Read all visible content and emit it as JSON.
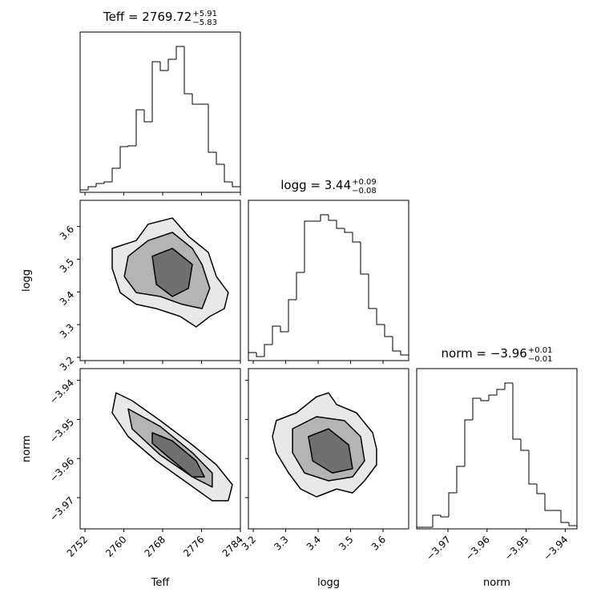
{
  "chart_data": [
    {
      "type": "histogram",
      "title": "Teff = 2769.72",
      "title_sup": "+5.91",
      "title_sub": "−5.83",
      "bins": [
        2751,
        2752.65,
        2754.3,
        2755.95,
        2757.6,
        2759.25,
        2760.9,
        2762.55,
        2764.2,
        2765.85,
        2767.5,
        2769.15,
        2770.8,
        2772.45,
        2774.1,
        2775.75,
        2777.4,
        2779.05,
        2780.7,
        2782.35,
        2784
      ],
      "values": [
        3,
        7,
        11,
        13,
        30,
        57,
        58,
        103,
        88,
        163,
        152,
        166,
        182,
        123,
        110,
        110,
        50,
        35,
        13,
        7
      ],
      "xlim": [
        2751,
        2784
      ],
      "xticks": [
        2752,
        2760,
        2768,
        2776,
        2784
      ],
      "ylim": [
        0,
        200
      ],
      "color": "#000000"
    },
    {
      "type": "contour",
      "ylabel": "logg",
      "xlim": [
        2751,
        2784
      ],
      "xticks": [
        2752,
        2760,
        2768,
        2776,
        2784
      ],
      "ylim": [
        3.19,
        3.68
      ],
      "yticks": [
        3.2,
        3.3,
        3.4,
        3.5,
        3.6
      ],
      "colors": [
        "#e8e8e8",
        "#b4b4b4",
        "#707070"
      ],
      "line_color": "#000000",
      "contours": [
        {
          "x": [
            2757.6,
            2762.55,
            2765.0,
            2770.0,
            2773.3,
            2777.4,
            2779.05,
            2781.5,
            2780.7,
            2777.7,
            2774.9,
            2771.6,
            2766.7,
            2762.55,
            2759.25,
            2757.6
          ],
          "y": [
            3.533,
            3.557,
            3.607,
            3.626,
            3.57,
            3.521,
            3.447,
            3.398,
            3.349,
            3.325,
            3.293,
            3.325,
            3.349,
            3.362,
            3.398,
            3.472
          ]
        },
        {
          "x": [
            2760.9,
            2765.0,
            2770.0,
            2774.1,
            2776.1,
            2777.7,
            2776.1,
            2772.0,
            2767.5,
            2762.55,
            2760.1
          ],
          "y": [
            3.509,
            3.557,
            3.582,
            3.533,
            3.484,
            3.411,
            3.349,
            3.362,
            3.386,
            3.398,
            3.447
          ]
        },
        {
          "x": [
            2765.85,
            2770.0,
            2774.1,
            2773.3,
            2770.0,
            2766.7
          ],
          "y": [
            3.509,
            3.533,
            3.484,
            3.411,
            3.386,
            3.423
          ]
        }
      ]
    },
    {
      "type": "histogram",
      "title": "logg = 3.44",
      "title_sup": "+0.09",
      "title_sub": "−0.08",
      "bins": [
        3.185,
        3.2097,
        3.2344,
        3.2591,
        3.2838,
        3.3085,
        3.3332,
        3.3579,
        3.3826,
        3.4073,
        3.432,
        3.4567,
        3.4814,
        3.5061,
        3.5308,
        3.5555,
        3.5802,
        3.6049,
        3.6296,
        3.6543,
        3.679
      ],
      "values": [
        10,
        5,
        20,
        43,
        36,
        76,
        110,
        174,
        174,
        182,
        175,
        165,
        160,
        148,
        108,
        65,
        45,
        30,
        12,
        7
      ],
      "xlim": [
        3.185,
        3.679
      ],
      "xticks": [
        3.2,
        3.3,
        3.4,
        3.5,
        3.6
      ],
      "ylim": [
        0,
        200
      ],
      "color": "#000000"
    },
    {
      "type": "contour",
      "xlabel": "Teff",
      "ylabel": "norm",
      "xlim": [
        2751,
        2784
      ],
      "xticks": [
        2752,
        2760,
        2768,
        2776,
        2784
      ],
      "ylim": [
        -3.978,
        -3.937
      ],
      "yticks": [
        {
          "value": -3.97,
          "label": "−3.97"
        },
        {
          "value": -3.96,
          "label": "−3.96"
        },
        {
          "value": -3.95,
          "label": "−3.95"
        },
        {
          "value": -3.94,
          "label": "−3.94"
        }
      ],
      "colors": [
        "#e8e8e8",
        "#b4b4b4",
        "#707070"
      ],
      "line_color": "#000000",
      "contours": [
        {
          "x": [
            2758.4,
            2761.7,
            2767.5,
            2774.1,
            2779.05,
            2782.35,
            2781.5,
            2778.2,
            2772.45,
            2766.7,
            2760.9,
            2757.6
          ],
          "y": [
            -3.9432,
            -3.9452,
            -3.9503,
            -3.9565,
            -3.9616,
            -3.9667,
            -3.9708,
            -3.9708,
            -3.9657,
            -3.9606,
            -3.9544,
            -3.9483
          ]
        },
        {
          "x": [
            2760.9,
            2767.5,
            2774.1,
            2778.2,
            2778.2,
            2774.1,
            2767.5,
            2761.7
          ],
          "y": [
            -3.9473,
            -3.9518,
            -3.9585,
            -3.9637,
            -3.9673,
            -3.9647,
            -3.9591,
            -3.9524
          ]
        },
        {
          "x": [
            2765.85,
            2770.0,
            2774.9,
            2776.6,
            2774.1,
            2769.15,
            2765.85
          ],
          "y": [
            -3.9534,
            -3.9555,
            -3.9606,
            -3.9647,
            -3.9647,
            -3.9596,
            -3.9561
          ]
        }
      ]
    },
    {
      "type": "contour",
      "xlabel": "logg",
      "xlim": [
        3.185,
        3.679
      ],
      "xticks": [
        3.2,
        3.3,
        3.4,
        3.5,
        3.6
      ],
      "ylim": [
        -3.978,
        -3.937
      ],
      "yticks": [
        -3.97,
        -3.96,
        -3.95,
        -3.94
      ],
      "colors": [
        "#e8e8e8",
        "#b4b4b4",
        "#707070"
      ],
      "line_color": "#000000",
      "contours": [
        {
          "x": [
            3.271,
            3.333,
            3.395,
            3.432,
            3.457,
            3.518,
            3.568,
            3.58,
            3.58,
            3.543,
            3.506,
            3.457,
            3.395,
            3.346,
            3.309,
            3.271,
            3.259
          ],
          "y": [
            -3.9503,
            -3.9483,
            -3.9442,
            -3.9432,
            -3.9462,
            -3.9483,
            -3.9534,
            -3.9575,
            -3.9616,
            -3.9657,
            -3.9688,
            -3.9678,
            -3.9698,
            -3.9678,
            -3.9637,
            -3.9585,
            -3.9544
          ]
        },
        {
          "x": [
            3.321,
            3.395,
            3.481,
            3.531,
            3.543,
            3.506,
            3.432,
            3.358,
            3.321
          ],
          "y": [
            -3.9524,
            -3.9493,
            -3.9503,
            -3.9544,
            -3.9606,
            -3.9647,
            -3.9657,
            -3.9637,
            -3.9585
          ]
        },
        {
          "x": [
            3.37,
            3.432,
            3.494,
            3.506,
            3.444,
            3.383
          ],
          "y": [
            -3.9544,
            -3.9524,
            -3.9565,
            -3.9626,
            -3.9637,
            -3.9606
          ]
        }
      ]
    },
    {
      "type": "histogram",
      "title": "norm = −3.96",
      "title_sup": "+0.01",
      "title_sub": "−0.01",
      "xlabel": "norm",
      "bins": [
        -3.978,
        -3.97595,
        -3.9739,
        -3.97185,
        -3.9698,
        -3.96775,
        -3.9657,
        -3.96365,
        -3.9616,
        -3.95955,
        -3.9575,
        -3.95545,
        -3.9534,
        -3.95135,
        -3.9493,
        -3.94725,
        -3.9452,
        -3.94315,
        -3.9411,
        -3.93905,
        -3.937
      ],
      "values": [
        2,
        2,
        17,
        15,
        45,
        78,
        136,
        163,
        160,
        167,
        174,
        182,
        112,
        98,
        56,
        44,
        23,
        23,
        8,
        4
      ],
      "xlim": [
        -3.978,
        -3.937
      ],
      "xticks": [
        {
          "value": -3.97,
          "label": "−3.97"
        },
        {
          "value": -3.96,
          "label": "−3.96"
        },
        {
          "value": -3.95,
          "label": "−3.95"
        },
        {
          "value": -3.94,
          "label": "−3.94"
        }
      ],
      "ylim": [
        0,
        200
      ],
      "color": "#000000"
    }
  ]
}
